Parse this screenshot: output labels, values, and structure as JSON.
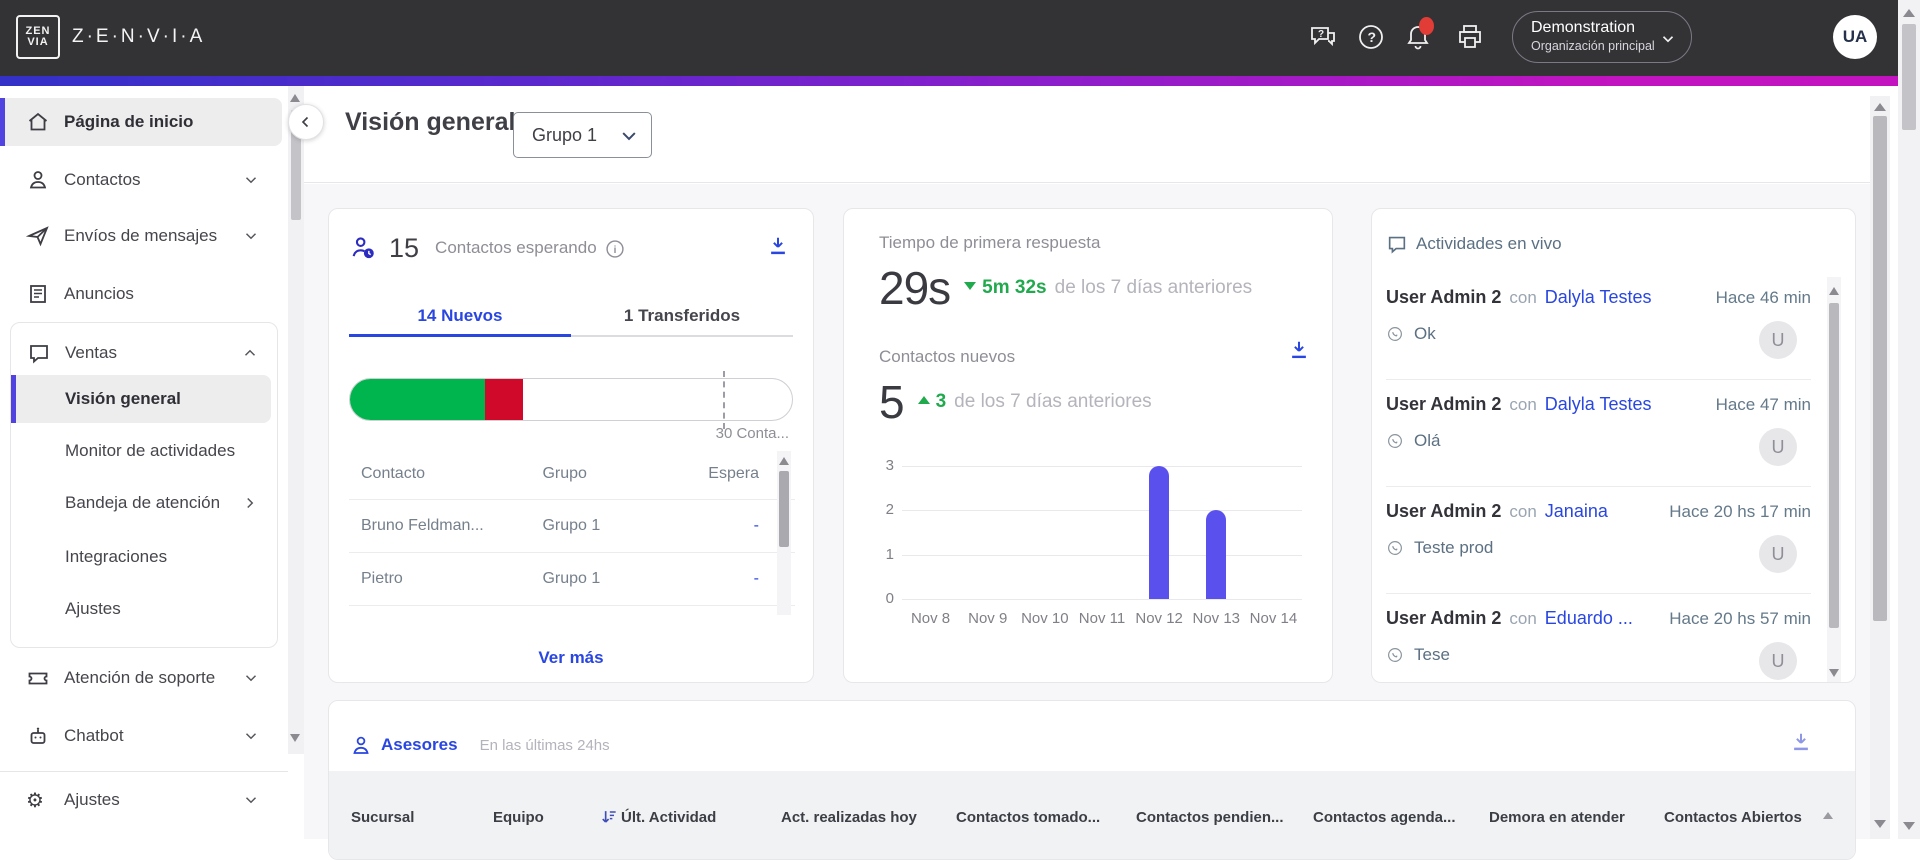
{
  "header": {
    "brand": "Z·E·N·V·I·A",
    "logo_line1": "ZEN",
    "logo_line2": "VIA",
    "org_name": "Demonstration",
    "org_subtitle": "Organización principal",
    "avatar_initials": "UA"
  },
  "sidebar": {
    "items": {
      "home": "Página de inicio",
      "contacts": "Contactos",
      "messaging": "Envíos de mensajes",
      "announcements": "Anuncios",
      "sales": "Ventas",
      "support": "Atención de soporte",
      "chatbot": "Chatbot",
      "settings": "Ajustes"
    },
    "sales_children": {
      "overview": "Visión general",
      "monitor": "Monitor de actividades",
      "inbox": "Bandeja de atención",
      "integrations": "Integraciones",
      "settings": "Ajustes"
    }
  },
  "page": {
    "title": "Visión general",
    "group_select_value": "Grupo 1"
  },
  "waiting": {
    "count": "15",
    "label": "Contactos esperando",
    "tabs": {
      "new": "14 Nuevos",
      "transferred": "1 Transferidos"
    },
    "capacity": "30 Conta...",
    "columns": {
      "contact": "Contacto",
      "group": "Grupo",
      "wait": "Espera"
    },
    "rows": [
      {
        "contact": "Bruno Feldman...",
        "group": "Grupo 1",
        "wait": "-"
      },
      {
        "contact": "Pietro",
        "group": "Grupo 1",
        "wait": "-"
      }
    ],
    "more_label": "Ver más"
  },
  "response": {
    "title": "Tiempo de primera respuesta",
    "value": "29s",
    "delta": "5m 32s",
    "delta_suffix": "de los 7 días anteriores",
    "new_title": "Contactos nuevos",
    "new_value": "5",
    "new_delta": "3",
    "new_delta_suffix": "de los 7 días anteriores",
    "chart_data": {
      "type": "bar",
      "categories": [
        "Nov 8",
        "Nov 9",
        "Nov 10",
        "Nov 11",
        "Nov 12",
        "Nov 13",
        "Nov 14"
      ],
      "values": [
        0,
        0,
        0,
        0,
        3,
        2,
        0
      ],
      "yticks": [
        0,
        1,
        2,
        3
      ],
      "ylim": [
        0,
        3
      ],
      "bar_color": "#5a50ee",
      "grid": true
    }
  },
  "activities": {
    "title": "Actividades en vivo",
    "con_label": "con",
    "entries": [
      {
        "user": "User Admin 2",
        "partner": "Dalyla Testes",
        "time": "Hace 46 min",
        "message": "Ok",
        "avatar": "U"
      },
      {
        "user": "User Admin 2",
        "partner": "Dalyla Testes",
        "time": "Hace 47 min",
        "message": "Olá",
        "avatar": "U"
      },
      {
        "user": "User Admin 2",
        "partner": "Janaina",
        "time": "Hace 20 hs 17 min",
        "message": "Teste prod",
        "avatar": "U"
      },
      {
        "user": "User Admin 2",
        "partner": "Eduardo ...",
        "time": "Hace 20 hs 57 min",
        "message": "Tese",
        "avatar": "U"
      }
    ]
  },
  "advisors": {
    "title": "Asesores",
    "subtitle": "En las últimas 24hs",
    "columns": [
      "Sucursal",
      "Equipo",
      "Últ. Actividad",
      "Act. realizadas hoy",
      "Contactos tomado...",
      "Contactos pendien...",
      "Contactos agenda...",
      "Demora en atender",
      "Contactos Abiertos"
    ]
  },
  "colors": {
    "accent_blue": "#2946e1",
    "bar_indigo": "#5a50ee",
    "green": "#21a94e",
    "progress_green": "#00b44e",
    "progress_red": "#d0092b",
    "gradient_start": "#3331c8",
    "gradient_end": "#c313c1"
  }
}
